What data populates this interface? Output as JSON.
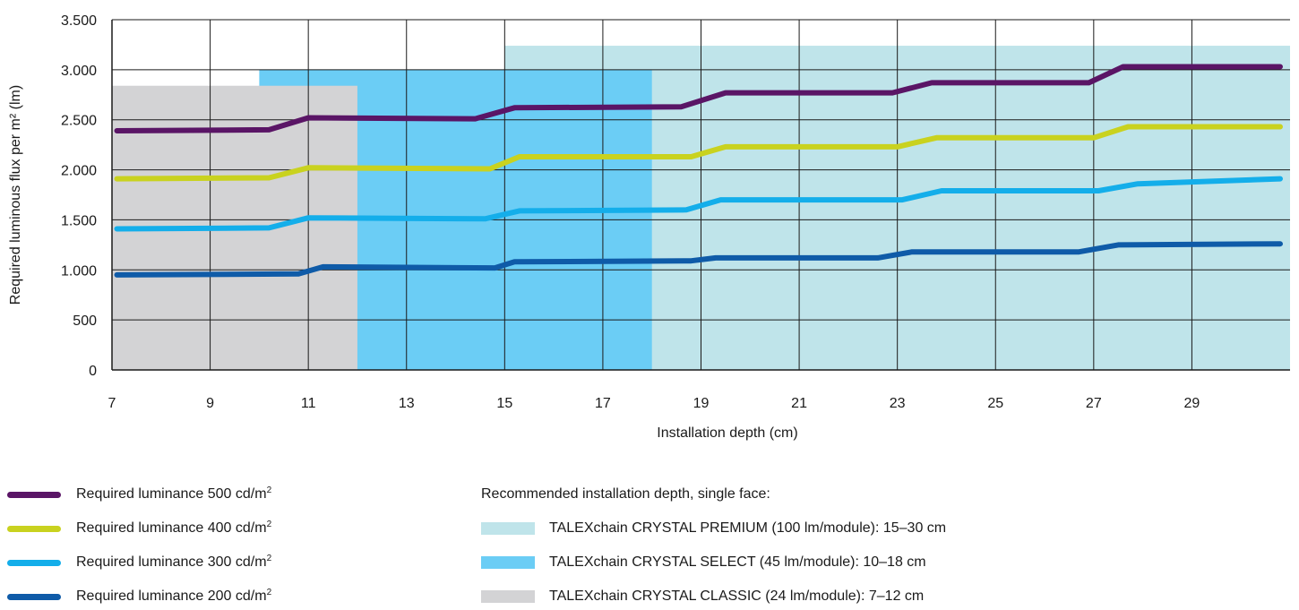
{
  "chart_data": {
    "type": "line",
    "title": "",
    "xlabel": "Installation depth (cm)",
    "ylabel": "Required luminous flux per m² (lm)",
    "xlim": [
      7,
      31
    ],
    "ylim": [
      0,
      3500
    ],
    "x_ticks": [
      7,
      9,
      11,
      13,
      15,
      17,
      19,
      21,
      23,
      25,
      27,
      29
    ],
    "y_ticks": [
      {
        "value": 0,
        "label": "0"
      },
      {
        "value": 500,
        "label": "500"
      },
      {
        "value": 1000,
        "label": "1.000"
      },
      {
        "value": 1500,
        "label": "1.500"
      },
      {
        "value": 2000,
        "label": "2.000"
      },
      {
        "value": 2500,
        "label": "2.500"
      },
      {
        "value": 3000,
        "label": "3.000"
      },
      {
        "value": 3500,
        "label": "3.500"
      }
    ],
    "grid": true,
    "bands": [
      {
        "name": "TALEXchain CRYSTAL PREMIUM (100 lm/module): 15–30 cm",
        "x0": 15,
        "x1": 31,
        "y_top": 3240,
        "color": "#bfe4ea"
      },
      {
        "name": "TALEXchain CRYSTAL SELECT (45 lm/module): 10–18 cm",
        "x0": 10,
        "x1": 18,
        "y_top": 3000,
        "color": "#6bcdf5"
      },
      {
        "name": "TALEXchain CRYSTAL CLASSIC (24 lm/module): 7–12 cm",
        "x0": 7,
        "x1": 12,
        "y_top": 2840,
        "color": "#d3d3d5"
      }
    ],
    "series": [
      {
        "name": "Required luminance 500 cd/m",
        "color": "#5a1566",
        "x": [
          7.1,
          10.2,
          11,
          14.4,
          15.2,
          18.6,
          19.5,
          22.9,
          23.7,
          26.9,
          27.6,
          30.8
        ],
        "y": [
          2390,
          2400,
          2520,
          2510,
          2620,
          2630,
          2770,
          2770,
          2870,
          2870,
          3030,
          3030
        ]
      },
      {
        "name": "Required luminance 400 cd/m",
        "color": "#c9d21f",
        "x": [
          7.1,
          10.2,
          11,
          14.7,
          15.3,
          18.8,
          19.5,
          23,
          23.8,
          27,
          27.7,
          30.8
        ],
        "y": [
          1910,
          1920,
          2020,
          2010,
          2130,
          2130,
          2230,
          2230,
          2320,
          2320,
          2430,
          2430
        ]
      },
      {
        "name": "Required luminance 300 cd/m",
        "color": "#14aeea",
        "x": [
          7.1,
          10.2,
          11,
          14.6,
          15.3,
          18.7,
          19.4,
          23.1,
          23.9,
          27.1,
          27.9,
          30.8
        ],
        "y": [
          1410,
          1420,
          1520,
          1510,
          1590,
          1600,
          1700,
          1700,
          1790,
          1790,
          1860,
          1910
        ]
      },
      {
        "name": "Required luminance 200 cd/m",
        "color": "#0f5ba8",
        "x": [
          7.1,
          10.8,
          11.3,
          14.8,
          15.2,
          18.8,
          19.3,
          22.6,
          23.3,
          26.7,
          27.5,
          30.8
        ],
        "y": [
          950,
          960,
          1030,
          1020,
          1080,
          1090,
          1120,
          1120,
          1180,
          1180,
          1250,
          1260
        ]
      }
    ]
  },
  "legend": {
    "luminance_items": [
      {
        "label": "Required luminance 500 cd/m",
        "sup": "2",
        "color": "#5a1566"
      },
      {
        "label": "Required luminance 400 cd/m",
        "sup": "2",
        "color": "#c9d21f"
      },
      {
        "label": "Required luminance 300 cd/m",
        "sup": "2",
        "color": "#14aeea"
      },
      {
        "label": "Required luminance 200 cd/m",
        "sup": "2",
        "color": "#0f5ba8"
      }
    ],
    "depth_heading": "Recommended installation depth, single face:",
    "depth_items": [
      {
        "label": "TALEXchain CRYSTAL PREMIUM (100 lm/module): 15–30 cm",
        "color": "#bfe4ea"
      },
      {
        "label": "TALEXchain CRYSTAL SELECT (45 lm/module): 10–18 cm",
        "color": "#6bcdf5"
      },
      {
        "label": "TALEXchain CRYSTAL CLASSIC (24 lm/module): 7–12 cm",
        "color": "#d3d3d5"
      }
    ]
  }
}
